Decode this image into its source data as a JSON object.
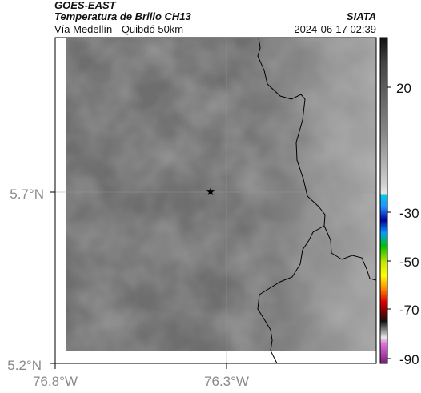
{
  "header": {
    "satellite": "GOES-EAST",
    "product": "Temperatura de Brillo CH13",
    "route": "Vía Medellín - Quibdó 50km",
    "agency": "SIATA",
    "datetime": "2024-06-17 02:39"
  },
  "map": {
    "lat_ticks": [
      "5.7°N",
      "5.2°N"
    ],
    "lon_ticks": [
      "76.8°W",
      "76.3°W"
    ],
    "marker": "star",
    "marker_icon": "star-icon"
  },
  "colorbar": {
    "ticks": [
      "20",
      "-30",
      "-50",
      "-70",
      "-90"
    ]
  },
  "colors": {
    "cloud_gray": "#6e6e6e",
    "border": "#000000"
  }
}
